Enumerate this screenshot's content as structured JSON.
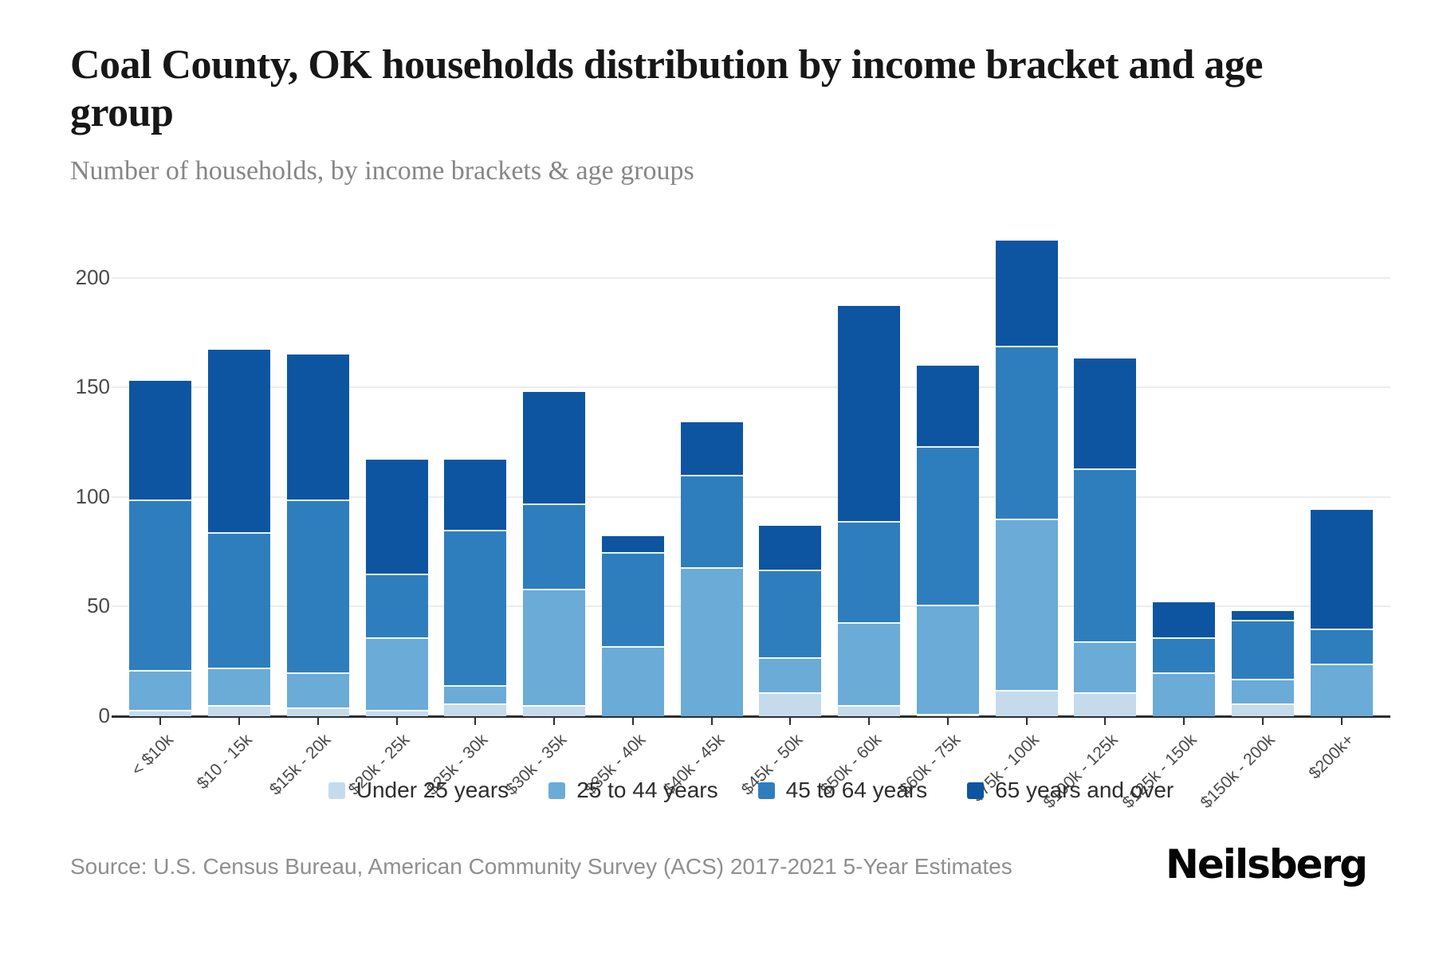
{
  "page": {
    "title": "Coal County, OK households distribution by income bracket and age group",
    "subtitle": "Number of households, by income brackets & age groups",
    "source": "Source: U.S. Census Bureau, American Community Survey (ACS) 2017-2021 5-Year Estimates",
    "brand": "Neilsberg"
  },
  "chart_data": {
    "type": "bar",
    "stacked": true,
    "title": "Coal County, OK households distribution by income bracket and age group",
    "subtitle": "Number of households, by income brackets & age groups",
    "xlabel": "",
    "ylabel": "Number of households",
    "ylim": [
      0,
      218
    ],
    "yticks": [
      0,
      50,
      100,
      150,
      200
    ],
    "grid": "horizontal",
    "legend_position": "bottom",
    "categories": [
      "< $10k",
      "$10 - 15k",
      "$15k - 20k",
      "$20k - 25k",
      "$25k - 30k",
      "$30k - 35k",
      "$35k - 40k",
      "$40k - 45k",
      "$45k - 50k",
      "$50k - 60k",
      "$60k - 75k",
      "$75k - 100k",
      "$100k - 125k",
      "$125k - 150k",
      "$150k - 200k",
      "$200k+"
    ],
    "series": [
      {
        "name": "Under 25 years",
        "color": "#c5dbec",
        "values": [
          3,
          5,
          4,
          3,
          6,
          5,
          0,
          0,
          11,
          5,
          1,
          12,
          11,
          0,
          6,
          0
        ]
      },
      {
        "name": "25 to 44 years",
        "color": "#6babd7",
        "values": [
          18,
          17,
          16,
          33,
          8,
          53,
          32,
          68,
          16,
          38,
          50,
          78,
          23,
          20,
          11,
          24
        ]
      },
      {
        "name": "45 to 64 years",
        "color": "#2e7ebd",
        "values": [
          78,
          62,
          79,
          29,
          71,
          39,
          43,
          42,
          40,
          46,
          72,
          79,
          79,
          16,
          27,
          16
        ]
      },
      {
        "name": "65 years and over",
        "color": "#0d55a1",
        "values": [
          54,
          83,
          66,
          52,
          32,
          51,
          7,
          24,
          20,
          98,
          37,
          48,
          50,
          16,
          4,
          54
        ]
      }
    ],
    "totals": [
      153,
      167,
      165,
      117,
      117,
      148,
      82,
      134,
      87,
      187,
      160,
      217,
      163,
      52,
      48,
      94
    ]
  },
  "axis": {
    "tick_color": "#4a4a4a"
  }
}
